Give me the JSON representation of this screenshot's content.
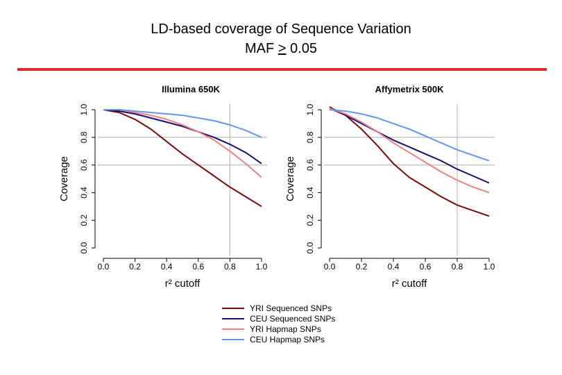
{
  "slide": {
    "title_line1": "LD-based coverage of Sequence Variation",
    "title_line2_prefix": "MAF ",
    "title_line2_op": ">",
    "title_line2_value": " 0.05"
  },
  "colors": {
    "rule": "#e02b2b",
    "yri_seq": "#7a0a0a",
    "ceu_seq": "#15106e",
    "yri_hapmap": "#f08080",
    "ceu_hapmap": "#6495ed",
    "guide": "#b0b0b0"
  },
  "chart_data": [
    {
      "type": "line",
      "title": "Illumina 650K",
      "xlabel": "r² cutoff",
      "ylabel": "Coverage",
      "xlim": [
        0,
        1
      ],
      "ylim": [
        0,
        1
      ],
      "x_ticks": [
        "0.0",
        "0.2",
        "0.4",
        "0.6",
        "0.8",
        "1.0"
      ],
      "y_ticks": [
        "0.0",
        "0.2",
        "0.4",
        "0.6",
        "0.8",
        "1.0"
      ],
      "guides": {
        "vertical_x": 0.8,
        "horizontal_y": [
          0.8,
          0.6
        ]
      },
      "x": [
        0,
        0.1,
        0.2,
        0.3,
        0.4,
        0.5,
        0.6,
        0.7,
        0.8,
        0.9,
        1.0
      ],
      "series": [
        {
          "name": "YRI Sequenced SNPs",
          "color": "#7a0a0a",
          "values": [
            1.0,
            0.98,
            0.93,
            0.86,
            0.77,
            0.68,
            0.6,
            0.52,
            0.44,
            0.37,
            0.3
          ]
        },
        {
          "name": "CEU Sequenced SNPs",
          "color": "#15106e",
          "values": [
            1.0,
            0.99,
            0.97,
            0.94,
            0.91,
            0.88,
            0.84,
            0.8,
            0.75,
            0.69,
            0.61
          ]
        },
        {
          "name": "YRI Hapmap SNPs",
          "color": "#f08080",
          "values": [
            1.0,
            1.0,
            0.98,
            0.96,
            0.93,
            0.89,
            0.84,
            0.78,
            0.7,
            0.61,
            0.51
          ]
        },
        {
          "name": "CEU Hapmap SNPs",
          "color": "#6495ed",
          "values": [
            1.0,
            1.0,
            0.99,
            0.98,
            0.97,
            0.96,
            0.94,
            0.92,
            0.89,
            0.85,
            0.8
          ]
        }
      ]
    },
    {
      "type": "line",
      "title": "Affymetrix 500K",
      "xlabel": "r² cutoff",
      "ylabel": "Coverage",
      "xlim": [
        0,
        1
      ],
      "ylim": [
        0,
        1
      ],
      "x_ticks": [
        "0.0",
        "0.2",
        "0.4",
        "0.6",
        "0.8",
        "1.0"
      ],
      "y_ticks": [
        "0.0",
        "0.2",
        "0.4",
        "0.6",
        "0.8",
        "1.0"
      ],
      "guides": {
        "vertical_x": 0.8,
        "horizontal_y": [
          0.8,
          0.6
        ]
      },
      "x": [
        0,
        0.1,
        0.2,
        0.3,
        0.4,
        0.5,
        0.6,
        0.7,
        0.8,
        0.9,
        1.0
      ],
      "series": [
        {
          "name": "YRI Sequenced SNPs",
          "color": "#7a0a0a",
          "values": [
            1.02,
            0.96,
            0.86,
            0.74,
            0.61,
            0.51,
            0.44,
            0.37,
            0.31,
            0.27,
            0.23
          ]
        },
        {
          "name": "CEU Sequenced SNPs",
          "color": "#15106e",
          "values": [
            1.01,
            0.96,
            0.9,
            0.84,
            0.78,
            0.73,
            0.68,
            0.63,
            0.57,
            0.52,
            0.47
          ]
        },
        {
          "name": "YRI Hapmap SNPs",
          "color": "#f08080",
          "values": [
            1.01,
            0.97,
            0.91,
            0.84,
            0.76,
            0.69,
            0.62,
            0.55,
            0.49,
            0.44,
            0.4
          ]
        },
        {
          "name": "CEU Hapmap SNPs",
          "color": "#6495ed",
          "values": [
            1.0,
            0.99,
            0.97,
            0.94,
            0.9,
            0.86,
            0.81,
            0.76,
            0.71,
            0.67,
            0.63
          ]
        }
      ]
    }
  ],
  "legend": {
    "items": [
      {
        "label": "YRI Sequenced SNPs",
        "color": "#7a0a0a"
      },
      {
        "label": "CEU Sequenced SNPs",
        "color": "#15106e"
      },
      {
        "label": "YRI Hapmap SNPs",
        "color": "#f08080"
      },
      {
        "label": "CEU Hapmap SNPs",
        "color": "#6495ed"
      }
    ]
  }
}
